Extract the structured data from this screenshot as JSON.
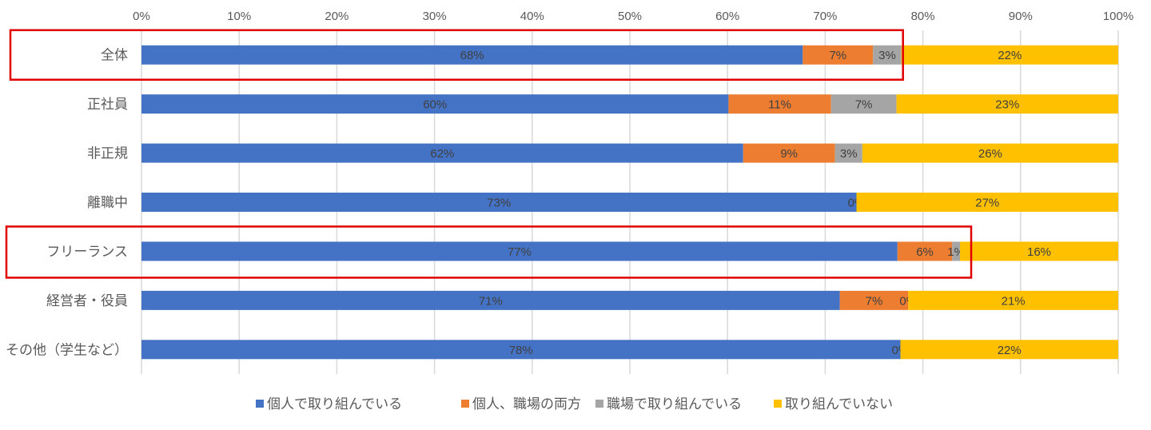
{
  "chart_data": {
    "type": "bar",
    "orientation": "horizontal",
    "stacked": "percent",
    "title": "",
    "xlabel": "",
    "ylabel": "",
    "xlim": [
      0,
      100
    ],
    "x_ticks": [
      "0%",
      "10%",
      "20%",
      "30%",
      "40%",
      "50%",
      "60%",
      "70%",
      "80%",
      "90%",
      "100%"
    ],
    "grid": true,
    "legend_position": "bottom",
    "categories": [
      "全体",
      "正社員",
      "非正規",
      "離職中",
      "フリーランス",
      "経営者・役員",
      "その他（学生など）"
    ],
    "highlighted_categories": [
      "全体",
      "フリーランス"
    ],
    "highlight_color": "#E00000",
    "series": [
      {
        "name": "個人で取り組んでいる",
        "color": "#4472C4",
        "values": [
          67.7,
          60.1,
          61.6,
          73.2,
          77.4,
          71.5,
          77.7
        ],
        "labels": [
          "68%",
          "60%",
          "62%",
          "73%",
          "77%",
          "71%",
          "78%"
        ]
      },
      {
        "name": "個人、職場の両方",
        "color": "#ED7D31",
        "values": [
          7.2,
          10.5,
          9.4,
          0,
          5.6,
          7.0,
          0
        ],
        "labels": [
          "7%",
          "11%",
          "9%",
          "0%",
          "6%",
          "7%",
          "0%"
        ]
      },
      {
        "name": "職場で取り組んでいる",
        "color": "#A5A5A5",
        "values": [
          2.9,
          6.7,
          2.8,
          0,
          0.8,
          0,
          0
        ],
        "labels": [
          "3%",
          "7%",
          "3%",
          null,
          "1%",
          "0%",
          null
        ]
      },
      {
        "name": "取り組んでいない",
        "color": "#FFC000",
        "values": [
          22.2,
          22.7,
          26.2,
          26.8,
          16.2,
          21.5,
          22.3
        ],
        "labels": [
          "22%",
          "23%",
          "26%",
          "27%",
          "16%",
          "21%",
          "22%"
        ]
      }
    ]
  }
}
